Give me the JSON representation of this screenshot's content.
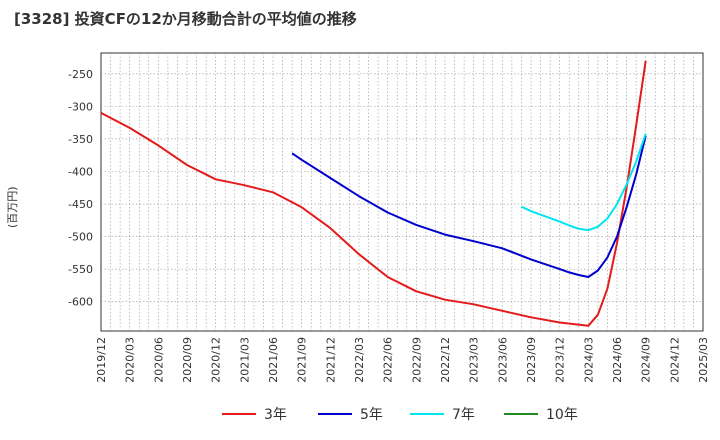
{
  "chart_data": {
    "type": "line",
    "title": "[3328]  投資CFの12か月移動合計の平均値の推移",
    "ylabel": "(百万円)",
    "xlabel": "",
    "x_ticks": [
      "2019/12",
      "2020/03",
      "2020/06",
      "2020/09",
      "2020/12",
      "2021/03",
      "2021/06",
      "2021/09",
      "2021/12",
      "2022/03",
      "2022/06",
      "2022/09",
      "2022/12",
      "2023/03",
      "2023/06",
      "2023/09",
      "2023/12",
      "2024/03",
      "2024/06",
      "2024/09",
      "2024/12",
      "2025/03"
    ],
    "y_ticks": [
      -250,
      -300,
      -350,
      -400,
      -450,
      -500,
      -550,
      -600
    ],
    "ylim": [
      -645,
      -218
    ],
    "grid": true,
    "legend_position": "bottom",
    "series": [
      {
        "name": "3年",
        "color": "#e41a1c",
        "x": [
          "2019/12",
          "2020/03",
          "2020/06",
          "2020/09",
          "2020/12",
          "2021/03",
          "2021/06",
          "2021/09",
          "2021/12",
          "2022/03",
          "2022/06",
          "2022/09",
          "2022/12",
          "2023/03",
          "2023/06",
          "2023/09",
          "2023/12",
          "2024/03",
          "2024/04",
          "2024/05",
          "2024/06",
          "2024/07",
          "2024/08",
          "2024/09"
        ],
        "values": [
          -310,
          -333,
          -360,
          -390,
          -412,
          -421,
          -432,
          -455,
          -487,
          -527,
          -562,
          -584,
          -597,
          -604,
          -614,
          -624,
          -632,
          -637,
          -620,
          -580,
          -510,
          -425,
          -330,
          -230
        ]
      },
      {
        "name": "5年",
        "color": "#0000cd",
        "x": [
          "2021/08",
          "2021/09",
          "2021/12",
          "2022/03",
          "2022/06",
          "2022/09",
          "2022/12",
          "2023/03",
          "2023/06",
          "2023/09",
          "2023/12",
          "2024/01",
          "2024/02",
          "2024/03",
          "2024/04",
          "2024/05",
          "2024/06",
          "2024/07",
          "2024/08",
          "2024/09"
        ],
        "values": [
          -372,
          -382,
          -410,
          -438,
          -463,
          -482,
          -497,
          -507,
          -518,
          -535,
          -550,
          -555,
          -559,
          -562,
          -552,
          -532,
          -500,
          -455,
          -405,
          -345
        ]
      },
      {
        "name": "7年",
        "color": "#00e5ee",
        "x": [
          "2023/08",
          "2023/09",
          "2023/12",
          "2024/01",
          "2024/02",
          "2024/03",
          "2024/04",
          "2024/05",
          "2024/06",
          "2024/07",
          "2024/08",
          "2024/09"
        ],
        "values": [
          -454,
          -461,
          -477,
          -483,
          -488,
          -490,
          -485,
          -472,
          -450,
          -420,
          -385,
          -342
        ]
      },
      {
        "name": "10年",
        "color": "#228b22",
        "x": [],
        "values": []
      }
    ]
  }
}
